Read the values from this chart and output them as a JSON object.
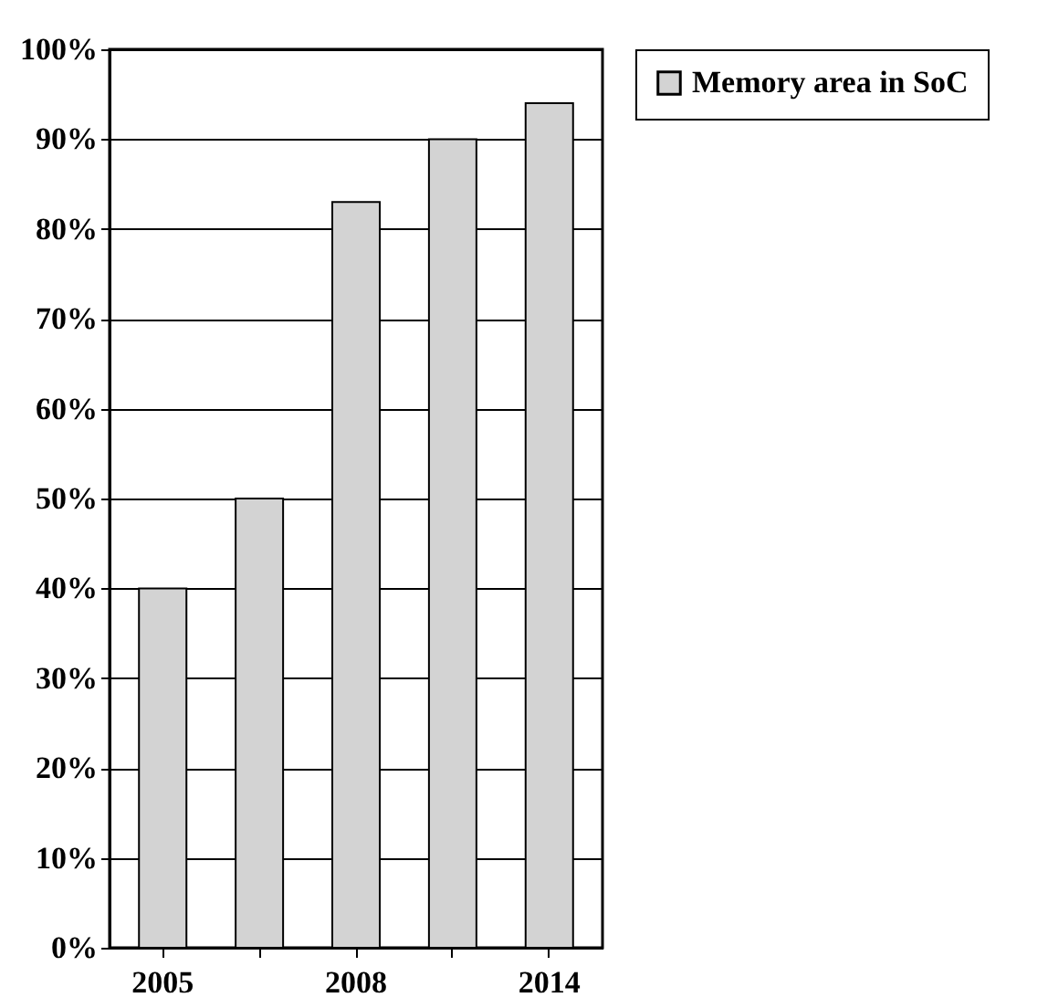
{
  "chart_data": {
    "type": "bar",
    "categories": [
      "2005",
      null,
      "2008",
      null,
      "2014"
    ],
    "series": [
      {
        "name": "Memory area in SoC",
        "color": "#d3d3d3",
        "values": [
          40,
          50,
          83,
          90,
          94
        ]
      }
    ],
    "ylim": [
      0,
      100
    ],
    "yticks": [
      {
        "value": 0,
        "label": "0%"
      },
      {
        "value": 10,
        "label": "10%"
      },
      {
        "value": 20,
        "label": "20%"
      },
      {
        "value": 30,
        "label": "30%"
      },
      {
        "value": 40,
        "label": "40%"
      },
      {
        "value": 50,
        "label": "50%"
      },
      {
        "value": 60,
        "label": "60%"
      },
      {
        "value": 70,
        "label": "70%"
      },
      {
        "value": 80,
        "label": "80%"
      },
      {
        "value": 90,
        "label": "90%"
      },
      {
        "value": 100,
        "label": "100%"
      }
    ],
    "grid": "y",
    "legend": "right"
  }
}
